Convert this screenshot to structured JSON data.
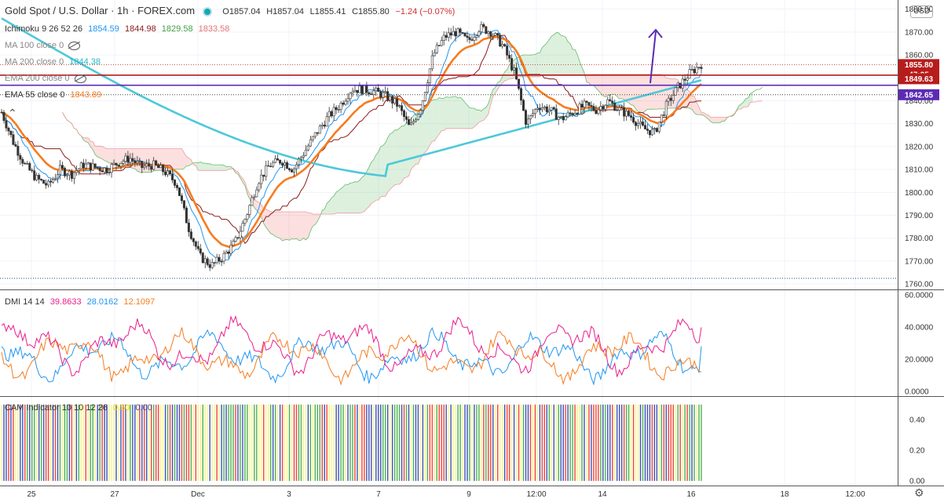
{
  "header": {
    "symbol": "Gold Spot / U.S. Dollar · 1h · FOREX.com",
    "open": "O1857.04",
    "high": "H1857.04",
    "low": "L1855.41",
    "close": "C1855.80",
    "change": "−1.24 (−0.07%)",
    "currency": "USD"
  },
  "indicators": {
    "ichimoku": {
      "label": "Ichimoku 9 26 52 26",
      "v1": "1854.59",
      "v2": "1844.98",
      "v3": "1829.58",
      "v4": "1833.58"
    },
    "ma100": {
      "label": "MA 100 close 0"
    },
    "ma200": {
      "label": "MA 200 close 0",
      "value": "1844.38"
    },
    "ema200": {
      "label": "EMA 200 close 0"
    },
    "ema55": {
      "label": "EMA 55 close 0",
      "value": "1843.89"
    },
    "dmi": {
      "label": "DMI 14 14",
      "v1": "39.8633",
      "v2": "28.0162",
      "v3": "12.1097"
    },
    "cam": {
      "label": "CAM Indicator 10 10 12 26",
      "v1": "0.50",
      "v2": "0.00"
    }
  },
  "colors": {
    "up": "#26a69a",
    "down": "#ef5350",
    "candle": "#333333",
    "ema55": "#f57c20",
    "ma200": "#4dc8d9",
    "tenkan": "#2196f3",
    "kijun": "#8b1a1a",
    "spanA": "#66bb6a",
    "spanB": "#ef9a9a",
    "red_line": "#b71c1c",
    "purple_line": "#5b2bb5",
    "dmi_plus": "#2196f3",
    "dmi_minus": "#f57c20",
    "adx": "#e91e8c",
    "cam_green": "#4caf50",
    "cam_red": "#f44336",
    "cam_blue": "#3f51b5",
    "cam_yellow": "#f5f58a"
  },
  "chart_data": [
    {
      "type": "candlestick",
      "title": "Gold Spot / U.S. Dollar · 1h · FOREX.com",
      "y_ticks": [
        "1880.00",
        "1870.00",
        "1860.00",
        "1850.00",
        "1840.00",
        "1830.00",
        "1820.00",
        "1810.00",
        "1800.00",
        "1790.00",
        "1780.00",
        "1770.00",
        "1760.00"
      ],
      "ylim": [
        1758,
        1884
      ],
      "x_ticks": [
        "25",
        "27",
        "Dec",
        "3",
        "7",
        "9",
        "12:00",
        "14",
        "16",
        "18",
        "12:00"
      ],
      "price_tags": [
        {
          "label": "1855.80",
          "value": 1855.8,
          "color": "#b71c1c"
        },
        {
          "label": "47:25",
          "value": 1851.5,
          "color": "#b71c1c"
        },
        {
          "label": "1849.63",
          "value": 1849.63,
          "color": "#b71c1c"
        },
        {
          "label": "1842.65",
          "value": 1842.65,
          "color": "#5b2bb5"
        }
      ],
      "horizontal_lines": [
        {
          "name": "resistance",
          "value": 1851.2,
          "color": "#b71c1c"
        },
        {
          "name": "support",
          "value": 1846.8,
          "color": "#5b2bb5"
        },
        {
          "name": "dotted-low",
          "value": 1762.5,
          "color": "#1a4e8a"
        },
        {
          "name": "dotted-mid",
          "value": 1842.65,
          "color": "#444"
        }
      ],
      "close_series": [
        1835,
        1822,
        1812,
        1806,
        1803,
        1810,
        1808,
        1812,
        1811,
        1810,
        1813,
        1815,
        1811,
        1812,
        1809,
        1804,
        1785,
        1772,
        1768,
        1772,
        1778,
        1790,
        1805,
        1812,
        1814,
        1810,
        1818,
        1826,
        1833,
        1838,
        1845,
        1845,
        1844,
        1842,
        1838,
        1828,
        1838,
        1860,
        1868,
        1870,
        1866,
        1872,
        1870,
        1864,
        1852,
        1830,
        1838,
        1836,
        1832,
        1835,
        1838,
        1836,
        1840,
        1836,
        1833,
        1828,
        1826,
        1838,
        1846,
        1852,
        1856
      ]
    },
    {
      "type": "line",
      "title": "DMI 14 14",
      "y_ticks": [
        "60.0000",
        "40.0000",
        "20.0000",
        "0.0000"
      ],
      "ylim": [
        -3,
        63
      ],
      "series": [
        {
          "name": "+DI",
          "last": "28.0162"
        },
        {
          "name": "-DI",
          "last": "12.1097"
        },
        {
          "name": "ADX",
          "last": "39.8633"
        }
      ]
    },
    {
      "type": "bar",
      "title": "CAM Indicator 10 10 12 26",
      "y_ticks": [
        "0.40",
        "0.20",
        "0.00"
      ],
      "ylim": [
        -0.03,
        0.55
      ],
      "value": 0.5
    }
  ]
}
